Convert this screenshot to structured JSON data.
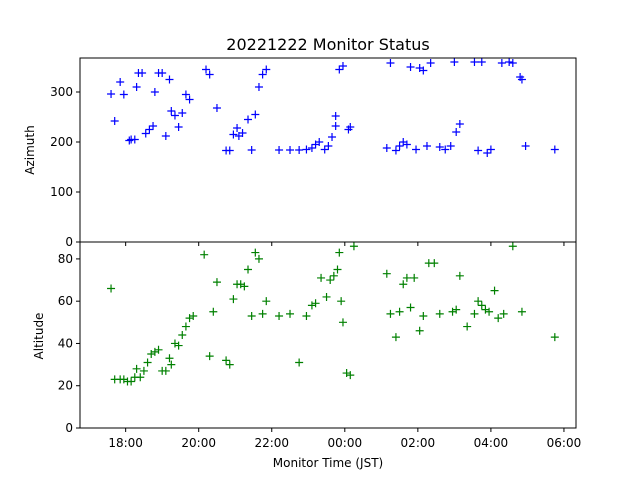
{
  "chart_data": {
    "type": "scatter",
    "title": "20221222 Monitor Status",
    "xlabel": "Monitor Time (JST)",
    "x_unit": "hours (JST, values past 24 are next day)",
    "xlim": [
      16.75,
      30.33
    ],
    "x_ticks": [
      {
        "value": 18,
        "label": "18:00"
      },
      {
        "value": 20,
        "label": "20:00"
      },
      {
        "value": 22,
        "label": "22:00"
      },
      {
        "value": 24,
        "label": "00:00"
      },
      {
        "value": 26,
        "label": "02:00"
      },
      {
        "value": 28,
        "label": "04:00"
      },
      {
        "value": 30,
        "label": "06:00"
      }
    ],
    "panels": [
      {
        "name": "azimuth",
        "ylabel": "Azimuth",
        "ylim": [
          0,
          368
        ],
        "y_ticks": [
          0,
          100,
          200,
          300
        ],
        "marker": "+",
        "color": "#0000ff",
        "points": [
          [
            17.6,
            296
          ],
          [
            17.7,
            242
          ],
          [
            17.85,
            320
          ],
          [
            17.95,
            295
          ],
          [
            18.1,
            203
          ],
          [
            18.15,
            205
          ],
          [
            18.25,
            205
          ],
          [
            18.3,
            310
          ],
          [
            18.35,
            338
          ],
          [
            18.45,
            338
          ],
          [
            18.55,
            217
          ],
          [
            18.65,
            225
          ],
          [
            18.75,
            232
          ],
          [
            18.8,
            300
          ],
          [
            18.9,
            338
          ],
          [
            19.0,
            338
          ],
          [
            19.1,
            212
          ],
          [
            19.25,
            262
          ],
          [
            19.35,
            253
          ],
          [
            19.45,
            230
          ],
          [
            19.55,
            258
          ],
          [
            19.65,
            295
          ],
          [
            19.75,
            285
          ],
          [
            19.2,
            325
          ],
          [
            20.2,
            345
          ],
          [
            20.3,
            335
          ],
          [
            20.5,
            268
          ],
          [
            20.75,
            183
          ],
          [
            20.85,
            183
          ],
          [
            20.95,
            215
          ],
          [
            21.05,
            228
          ],
          [
            21.1,
            212
          ],
          [
            21.2,
            218
          ],
          [
            21.35,
            245
          ],
          [
            21.45,
            184
          ],
          [
            21.55,
            255
          ],
          [
            21.65,
            310
          ],
          [
            21.75,
            335
          ],
          [
            21.85,
            345
          ],
          [
            22.2,
            184
          ],
          [
            22.5,
            184
          ],
          [
            22.75,
            184
          ],
          [
            22.95,
            185
          ],
          [
            23.1,
            188
          ],
          [
            23.2,
            195
          ],
          [
            23.3,
            200
          ],
          [
            23.45,
            185
          ],
          [
            23.55,
            192
          ],
          [
            23.65,
            210
          ],
          [
            23.75,
            232
          ],
          [
            23.75,
            252
          ],
          [
            23.85,
            345
          ],
          [
            23.95,
            352
          ],
          [
            24.1,
            225
          ],
          [
            24.15,
            230
          ],
          [
            25.15,
            188
          ],
          [
            25.25,
            358
          ],
          [
            25.4,
            183
          ],
          [
            25.5,
            192
          ],
          [
            25.6,
            200
          ],
          [
            25.7,
            195
          ],
          [
            25.8,
            350
          ],
          [
            25.95,
            185
          ],
          [
            26.05,
            348
          ],
          [
            26.15,
            343
          ],
          [
            26.25,
            192
          ],
          [
            26.35,
            358
          ],
          [
            26.6,
            190
          ],
          [
            26.75,
            185
          ],
          [
            26.9,
            192
          ],
          [
            27.0,
            360
          ],
          [
            27.05,
            220
          ],
          [
            27.15,
            236
          ],
          [
            27.55,
            360
          ],
          [
            27.65,
            183
          ],
          [
            27.75,
            360
          ],
          [
            27.9,
            178
          ],
          [
            28.0,
            185
          ],
          [
            28.3,
            358
          ],
          [
            28.5,
            360
          ],
          [
            28.6,
            358
          ],
          [
            28.8,
            330
          ],
          [
            28.85,
            325
          ],
          [
            28.95,
            192
          ],
          [
            29.75,
            185
          ]
        ]
      },
      {
        "name": "altitude",
        "ylabel": "Altitude",
        "ylim": [
          0,
          88
        ],
        "y_ticks": [
          0,
          20,
          40,
          60,
          80
        ],
        "marker": "+",
        "color": "#008000",
        "points": [
          [
            17.6,
            66
          ],
          [
            17.7,
            23
          ],
          [
            17.85,
            23
          ],
          [
            17.95,
            23
          ],
          [
            18.05,
            22
          ],
          [
            18.15,
            22
          ],
          [
            18.25,
            24
          ],
          [
            18.3,
            28
          ],
          [
            18.4,
            24
          ],
          [
            18.5,
            27
          ],
          [
            18.6,
            31
          ],
          [
            18.7,
            35
          ],
          [
            18.8,
            36
          ],
          [
            18.9,
            37
          ],
          [
            19.0,
            27
          ],
          [
            19.1,
            27
          ],
          [
            19.2,
            33
          ],
          [
            19.25,
            30
          ],
          [
            19.35,
            40
          ],
          [
            19.45,
            39
          ],
          [
            19.55,
            44
          ],
          [
            19.65,
            48
          ],
          [
            19.75,
            52
          ],
          [
            19.85,
            53
          ],
          [
            20.15,
            82
          ],
          [
            20.3,
            34
          ],
          [
            20.4,
            55
          ],
          [
            20.5,
            69
          ],
          [
            20.75,
            32
          ],
          [
            20.85,
            30
          ],
          [
            20.95,
            61
          ],
          [
            21.05,
            68
          ],
          [
            21.15,
            68
          ],
          [
            21.25,
            67
          ],
          [
            21.35,
            75
          ],
          [
            21.45,
            53
          ],
          [
            21.55,
            83
          ],
          [
            21.65,
            80
          ],
          [
            21.75,
            54
          ],
          [
            21.85,
            60
          ],
          [
            22.2,
            53
          ],
          [
            22.5,
            54
          ],
          [
            22.75,
            31
          ],
          [
            22.95,
            53
          ],
          [
            23.1,
            58
          ],
          [
            23.2,
            59
          ],
          [
            23.35,
            71
          ],
          [
            23.5,
            62
          ],
          [
            23.6,
            70
          ],
          [
            23.7,
            72
          ],
          [
            23.8,
            75
          ],
          [
            23.85,
            83
          ],
          [
            23.9,
            60
          ],
          [
            23.95,
            50
          ],
          [
            24.05,
            26
          ],
          [
            24.15,
            25
          ],
          [
            24.25,
            86
          ],
          [
            25.15,
            73
          ],
          [
            25.25,
            54
          ],
          [
            25.4,
            43
          ],
          [
            25.5,
            55
          ],
          [
            25.6,
            68
          ],
          [
            25.7,
            71
          ],
          [
            25.8,
            57
          ],
          [
            25.9,
            71
          ],
          [
            26.05,
            46
          ],
          [
            26.15,
            53
          ],
          [
            26.3,
            78
          ],
          [
            26.45,
            78
          ],
          [
            26.6,
            54
          ],
          [
            26.95,
            55
          ],
          [
            27.05,
            56
          ],
          [
            27.15,
            72
          ],
          [
            27.35,
            48
          ],
          [
            27.55,
            54
          ],
          [
            27.65,
            60
          ],
          [
            27.75,
            58
          ],
          [
            27.85,
            56
          ],
          [
            27.95,
            55
          ],
          [
            28.1,
            65
          ],
          [
            28.2,
            52
          ],
          [
            28.35,
            54
          ],
          [
            28.6,
            86
          ],
          [
            28.85,
            55
          ],
          [
            29.75,
            43
          ]
        ]
      }
    ]
  }
}
